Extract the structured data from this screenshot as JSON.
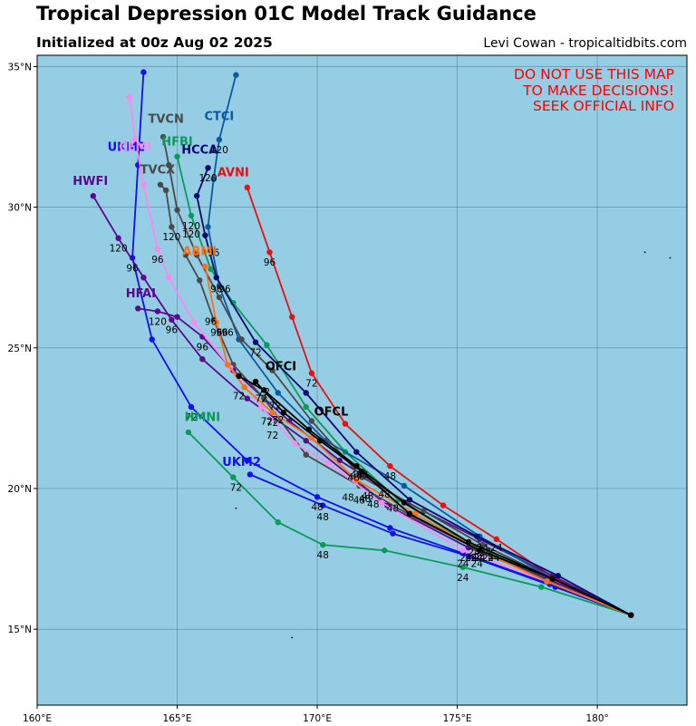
{
  "header": {
    "title": "Tropical Depression 01C Model Track Guidance",
    "subtitle": "Initialized at 00z Aug 02 2025",
    "credit": "Levi Cowan - tropicaltidbits.com"
  },
  "warning": [
    "DO NOT USE THIS MAP",
    "TO MAKE DECISIONS!",
    "SEEK OFFICIAL INFO"
  ],
  "colors": {
    "ocean": "#94cde4",
    "grid": "#5a8a95",
    "warning": "#ff0000"
  },
  "chart_data": {
    "type": "map",
    "lon_range": [
      160,
      183.2
    ],
    "lat_range": [
      12.3,
      35.4
    ],
    "lon_ticks": [
      160,
      165,
      170,
      175,
      180
    ],
    "lon_tick_labels": [
      "160°E",
      "165°E",
      "170°E",
      "175°E",
      "180°"
    ],
    "lat_ticks": [
      15,
      20,
      25,
      30,
      35
    ],
    "lat_tick_labels": [
      "15°N",
      "20°N",
      "25°N",
      "30°N",
      "35°N"
    ],
    "grid": true,
    "islands": [
      [
        167.1,
        19.3
      ],
      [
        169.1,
        14.7
      ],
      [
        181.7,
        28.4
      ],
      [
        182.6,
        28.2
      ]
    ],
    "tracks": [
      {
        "name": "AVNI",
        "color": "#e81010",
        "points": [
          [
            181.2,
            15.5
          ],
          [
            178.5,
            16.8
          ],
          [
            176.4,
            18.2
          ],
          [
            174.5,
            19.4
          ],
          [
            172.6,
            20.8
          ],
          [
            171.0,
            22.3
          ],
          [
            169.8,
            24.1
          ],
          [
            169.1,
            26.1
          ],
          [
            168.3,
            28.4
          ],
          [
            167.5,
            30.7
          ]
        ],
        "labels": [
          {
            "text": "24",
            "lon": 176.4,
            "lat": 17.9
          },
          {
            "text": "48",
            "lon": 172.6,
            "lat": 20.45
          },
          {
            "text": "72",
            "lon": 169.8,
            "lat": 23.75
          },
          {
            "text": "96",
            "lon": 168.3,
            "lat": 28.05
          }
        ],
        "name_pos": [
          167.0,
          31.1
        ]
      },
      {
        "name": "UKM2",
        "color": "#1010f0",
        "points": [
          [
            181.2,
            15.5
          ],
          [
            178.3,
            16.6
          ],
          [
            175.2,
            17.7
          ],
          [
            172.6,
            18.6
          ],
          [
            170.0,
            19.7
          ],
          [
            167.5,
            21.0
          ],
          [
            165.5,
            22.9
          ],
          [
            164.1,
            25.3
          ],
          [
            163.4,
            28.2
          ],
          [
            163.6,
            31.5
          ],
          [
            163.8,
            34.8
          ]
        ],
        "labels": [
          {
            "text": "24",
            "lon": 175.2,
            "lat": 17.35
          },
          {
            "text": "48",
            "lon": 170.0,
            "lat": 19.35
          },
          {
            "text": "72",
            "lon": 165.5,
            "lat": 22.55
          },
          {
            "text": "96",
            "lon": 163.4,
            "lat": 27.85
          }
        ],
        "name_pos": [
          163.2,
          32.0
        ]
      },
      {
        "name": "UKM2",
        "color": "#1010f0",
        "points": [
          [
            181.2,
            15.5
          ],
          [
            178.5,
            16.5
          ],
          [
            175.4,
            17.6
          ],
          [
            172.7,
            18.4
          ],
          [
            170.2,
            19.4
          ],
          [
            167.6,
            20.5
          ]
        ],
        "labels": [
          {
            "text": "48",
            "lon": 170.2,
            "lat": 19.0
          },
          {
            "text": "72",
            "lon": 167.1,
            "lat": 20.05
          }
        ],
        "name_pos": [
          167.3,
          20.8
        ]
      },
      {
        "name": "HMNI",
        "color": "#0a9a5a",
        "points": [
          [
            181.2,
            15.5
          ],
          [
            178.0,
            16.5
          ],
          [
            175.2,
            17.2
          ],
          [
            172.4,
            17.8
          ],
          [
            170.2,
            18.0
          ],
          [
            168.6,
            18.8
          ],
          [
            167.0,
            20.4
          ],
          [
            165.4,
            22.0
          ]
        ],
        "labels": [
          {
            "text": "24",
            "lon": 175.2,
            "lat": 16.85
          },
          {
            "text": "48",
            "lon": 170.2,
            "lat": 17.65
          }
        ],
        "name_pos": [
          165.9,
          22.4
        ]
      },
      {
        "name": "HFBI",
        "color": "#0a9a5a",
        "points": [
          [
            181.2,
            15.5
          ],
          [
            178.2,
            16.8
          ],
          [
            175.5,
            18.0
          ],
          [
            172.9,
            19.6
          ],
          [
            171.0,
            21.3
          ],
          [
            169.6,
            22.9
          ],
          [
            168.2,
            25.1
          ],
          [
            167.0,
            26.6
          ],
          [
            166.2,
            27.8
          ],
          [
            165.5,
            29.7
          ],
          [
            165.0,
            31.8
          ]
        ],
        "labels": [
          {
            "text": "120",
            "lon": 165.5,
            "lat": 29.35
          }
        ],
        "name_pos": [
          165.0,
          32.2
        ]
      },
      {
        "name": "HFAI",
        "color": "#5a0a8c",
        "points": [
          [
            181.2,
            15.5
          ],
          [
            178.4,
            16.9
          ],
          [
            175.8,
            18.2
          ],
          [
            173.2,
            19.5
          ],
          [
            170.8,
            21.0
          ],
          [
            169.0,
            22.4
          ],
          [
            167.0,
            24.2
          ],
          [
            165.9,
            25.4
          ],
          [
            165.0,
            26.1
          ],
          [
            164.3,
            26.3
          ],
          [
            163.6,
            26.4
          ]
        ],
        "labels": [
          {
            "text": "96",
            "lon": 165.9,
            "lat": 25.05
          },
          {
            "text": "120",
            "lon": 164.3,
            "lat": 25.95
          }
        ],
        "name_pos": [
          163.7,
          26.8
        ]
      },
      {
        "name": "HWFI",
        "color": "#5a0a8c",
        "points": [
          [
            181.2,
            15.5
          ],
          [
            178.2,
            16.8
          ],
          [
            175.4,
            17.9
          ],
          [
            172.5,
            19.4
          ],
          [
            169.6,
            21.7
          ],
          [
            167.5,
            23.2
          ],
          [
            165.9,
            24.6
          ],
          [
            164.8,
            26.0
          ],
          [
            163.8,
            27.5
          ],
          [
            162.9,
            28.9
          ],
          [
            162.0,
            30.4
          ]
        ],
        "labels": [
          {
            "text": "96",
            "lon": 164.8,
            "lat": 25.65
          },
          {
            "text": "120",
            "lon": 162.9,
            "lat": 28.55
          }
        ],
        "name_pos": [
          161.9,
          30.8
        ]
      },
      {
        "name": "CTCI",
        "color": "#0a5aa0",
        "points": [
          [
            181.2,
            15.5
          ],
          [
            178.4,
            16.8
          ],
          [
            175.8,
            18.3
          ],
          [
            173.1,
            20.1
          ],
          [
            170.3,
            21.7
          ],
          [
            168.6,
            23.4
          ],
          [
            167.2,
            25.3
          ],
          [
            166.5,
            27.2
          ],
          [
            166.1,
            29.3
          ],
          [
            166.3,
            31.0
          ],
          [
            166.5,
            32.4
          ],
          [
            167.1,
            34.7
          ]
        ],
        "labels": [
          {
            "text": "120",
            "lon": 166.5,
            "lat": 32.05
          }
        ],
        "name_pos": [
          166.5,
          33.1
        ]
      },
      {
        "name": "HCCA",
        "color": "#0a0a6e",
        "points": [
          [
            181.2,
            15.5
          ],
          [
            178.6,
            16.9
          ],
          [
            175.7,
            18.3
          ],
          [
            173.3,
            19.6
          ],
          [
            171.4,
            21.3
          ],
          [
            169.6,
            23.4
          ],
          [
            167.8,
            25.2
          ],
          [
            166.4,
            27.5
          ],
          [
            166.0,
            29.0
          ],
          [
            165.7,
            30.4
          ],
          [
            166.1,
            31.4
          ]
        ],
        "labels": [
          {
            "text": "72",
            "lon": 167.8,
            "lat": 24.85
          },
          {
            "text": "96",
            "lon": 166.4,
            "lat": 27.1
          },
          {
            "text": "120",
            "lon": 166.1,
            "lat": 31.05
          }
        ],
        "name_pos": [
          165.8,
          31.9
        ]
      },
      {
        "name": "TVCN",
        "color": "#4a4a4a",
        "points": [
          [
            181.2,
            15.5
          ],
          [
            178.4,
            16.8
          ],
          [
            175.9,
            18.0
          ],
          [
            173.8,
            19.2
          ],
          [
            171.6,
            20.4
          ],
          [
            169.8,
            22.4
          ],
          [
            168.4,
            24.2
          ],
          [
            167.3,
            25.3
          ],
          [
            166.5,
            26.8
          ],
          [
            165.7,
            28.3
          ],
          [
            165.0,
            29.9
          ],
          [
            164.7,
            31.5
          ],
          [
            164.5,
            32.5
          ]
        ],
        "labels": [
          {
            "text": "96",
            "lon": 166.2,
            "lat": 25.95
          },
          {
            "text": "120",
            "lon": 165.5,
            "lat": 29.05
          }
        ],
        "name_pos": [
          164.6,
          33.0
        ]
      },
      {
        "name": "TVCX",
        "color": "#4a4a4a",
        "points": [
          [
            181.2,
            15.5
          ],
          [
            178.3,
            16.7
          ],
          [
            175.6,
            17.9
          ],
          [
            173.4,
            19.0
          ],
          [
            171.5,
            20.1
          ],
          [
            169.6,
            21.2
          ],
          [
            168.1,
            23.2
          ],
          [
            167.0,
            24.4
          ],
          [
            166.3,
            26.0
          ],
          [
            165.8,
            27.4
          ],
          [
            165.3,
            28.3
          ],
          [
            164.8,
            29.3
          ],
          [
            164.6,
            30.6
          ],
          [
            164.4,
            30.8
          ]
        ],
        "labels": [
          {
            "text": "120",
            "lon": 164.8,
            "lat": 28.95
          }
        ],
        "name_pos": [
          164.3,
          31.2
        ]
      },
      {
        "name": "CEMI",
        "color": "#ff88ee",
        "points": [
          [
            181.2,
            15.5
          ],
          [
            178.2,
            16.7
          ],
          [
            175.2,
            17.8
          ],
          [
            172.3,
            19.5
          ],
          [
            170.4,
            20.9
          ],
          [
            169.2,
            21.6
          ],
          [
            168.0,
            22.9
          ],
          [
            166.9,
            24.3
          ],
          [
            165.6,
            25.9
          ],
          [
            164.7,
            27.5
          ],
          [
            164.3,
            28.5
          ],
          [
            163.8,
            30.8
          ],
          [
            163.5,
            32.4
          ],
          [
            163.3,
            33.9
          ]
        ],
        "labels": [
          {
            "text": "96",
            "lon": 164.3,
            "lat": 28.15
          }
        ],
        "name_pos": [
          163.5,
          32.0
        ]
      },
      {
        "name": "ABMI",
        "color": "#ff7010",
        "points": [
          [
            181.2,
            15.5
          ],
          [
            178.2,
            16.7
          ],
          [
            175.8,
            17.8
          ],
          [
            173.5,
            19.1
          ],
          [
            171.4,
            20.3
          ],
          [
            169.8,
            21.8
          ],
          [
            168.4,
            22.7
          ],
          [
            167.4,
            23.6
          ],
          [
            166.8,
            24.4
          ],
          [
            166.4,
            25.9
          ],
          [
            166.0,
            27.9
          ]
        ],
        "labels": [
          {
            "text": "72",
            "lon": 168.4,
            "lat": 22.35
          },
          {
            "text": "96",
            "lon": 166.4,
            "lat": 25.55
          }
        ],
        "name_pos": [
          165.8,
          28.3
        ]
      },
      {
        "name": "OFCI",
        "color": "#000000",
        "points": [
          [
            181.2,
            15.5
          ],
          [
            178.4,
            16.8
          ],
          [
            175.4,
            18.1
          ],
          [
            173.1,
            19.5
          ],
          [
            171.4,
            20.8
          ],
          [
            169.7,
            22.1
          ],
          [
            168.1,
            23.5
          ],
          [
            167.2,
            24.0
          ]
        ],
        "labels": [
          {
            "text": "72",
            "lon": 168.2,
            "lat": 22.4
          }
        ],
        "name_pos": [
          168.7,
          24.2
        ]
      },
      {
        "name": "OFCL",
        "color": "#000000",
        "points": [
          [
            181.2,
            15.5
          ],
          [
            178.4,
            16.8
          ],
          [
            175.8,
            17.8
          ],
          [
            173.3,
            19.1
          ],
          [
            171.6,
            20.6
          ],
          [
            170.1,
            21.7
          ],
          [
            168.8,
            22.7
          ],
          [
            167.8,
            23.8
          ]
        ],
        "labels": [
          {
            "text": "72",
            "lon": 168.0,
            "lat": 23.2
          }
        ],
        "name_pos": [
          170.5,
          22.6
        ]
      }
    ],
    "extra_labels": [
      {
        "text": "48",
        "lon": 171.4,
        "lat": 20.5
      },
      {
        "text": "48",
        "lon": 171.6,
        "lat": 20.5
      },
      {
        "text": "48",
        "lon": 171.8,
        "lat": 19.75
      },
      {
        "text": "48",
        "lon": 171.1,
        "lat": 19.7
      },
      {
        "text": "48",
        "lon": 172.0,
        "lat": 19.45
      },
      {
        "text": "48",
        "lon": 172.4,
        "lat": 19.8
      },
      {
        "text": "48",
        "lon": 172.7,
        "lat": 19.3
      },
      {
        "text": "48",
        "lon": 171.7,
        "lat": 19.65
      },
      {
        "text": "48",
        "lon": 171.5,
        "lat": 19.6
      },
      {
        "text": "48",
        "lon": 171.3,
        "lat": 20.4
      },
      {
        "text": "72",
        "lon": 168.6,
        "lat": 22.45
      },
      {
        "text": "72",
        "lon": 168.4,
        "lat": 21.9
      },
      {
        "text": "72",
        "lon": 167.2,
        "lat": 23.3
      },
      {
        "text": "72",
        "lon": 168.5,
        "lat": 22.95
      },
      {
        "text": "72",
        "lon": 168.1,
        "lat": 23.45
      },
      {
        "text": "96",
        "lon": 166.7,
        "lat": 27.1
      },
      {
        "text": "96",
        "lon": 166.3,
        "lat": 28.4
      },
      {
        "text": "96",
        "lon": 166.6,
        "lat": 25.55
      },
      {
        "text": "96",
        "lon": 166.8,
        "lat": 25.55
      },
      {
        "text": "24",
        "lon": 175.9,
        "lat": 17.9
      },
      {
        "text": "24",
        "lon": 176.3,
        "lat": 17.55
      },
      {
        "text": "24",
        "lon": 175.3,
        "lat": 17.55
      },
      {
        "text": "24",
        "lon": 175.5,
        "lat": 17.55
      },
      {
        "text": "24",
        "lon": 175.8,
        "lat": 17.55
      },
      {
        "text": "24",
        "lon": 175.6,
        "lat": 17.75
      },
      {
        "text": "24",
        "lon": 176.1,
        "lat": 17.55
      },
      {
        "text": "24",
        "lon": 175.7,
        "lat": 17.55
      },
      {
        "text": "24",
        "lon": 176.0,
        "lat": 17.75
      },
      {
        "text": "24",
        "lon": 175.7,
        "lat": 17.35
      }
    ]
  }
}
